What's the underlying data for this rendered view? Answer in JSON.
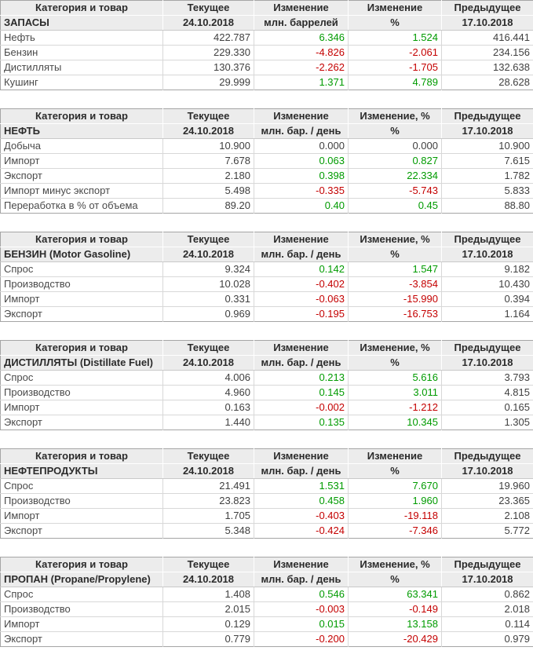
{
  "colors": {
    "positive": "#009b00",
    "negative": "#c40000",
    "neutral_text": "#3f3f3f",
    "header_bg": "#ececec",
    "header_text": "#2b2b2b",
    "table_border": "#a5a5a5"
  },
  "column_roles": [
    "category",
    "current",
    "change",
    "change-pct",
    "previous"
  ],
  "tables": [
    {
      "id": "stocks",
      "header": [
        "Категория и товар",
        "Текущее",
        "Изменение",
        "Изменение",
        "Предыдущее"
      ],
      "subheader": [
        "ЗАПАСЫ",
        "24.10.2018",
        "млн. баррелей",
        "%",
        "17.10.2018"
      ],
      "rows": [
        {
          "label": "Нефть",
          "values": [
            "422.787",
            "6.346",
            "1.524",
            "416.441"
          ]
        },
        {
          "label": "Бензин",
          "values": [
            "229.330",
            "-4.826",
            "-2.061",
            "234.156"
          ]
        },
        {
          "label": "Дистилляты",
          "values": [
            "130.376",
            "-2.262",
            "-1.705",
            "132.638"
          ]
        },
        {
          "label": "Кушинг",
          "values": [
            "29.999",
            "1.371",
            "4.789",
            "28.628"
          ]
        }
      ]
    },
    {
      "id": "crude-oil",
      "header": [
        "Категория и товар",
        "Текущее",
        "Изменение",
        "Изменение, %",
        "Предыдущее"
      ],
      "subheader": [
        "НЕФТЬ",
        "24.10.2018",
        "млн. бар. / день",
        "%",
        "17.10.2018"
      ],
      "rows": [
        {
          "label": "Добыча",
          "values": [
            "10.900",
            "0.000",
            "0.000",
            "10.900"
          ]
        },
        {
          "label": "Импорт",
          "values": [
            "7.678",
            "0.063",
            "0.827",
            "7.615"
          ]
        },
        {
          "label": "Экспорт",
          "values": [
            "2.180",
            "0.398",
            "22.334",
            "1.782"
          ]
        },
        {
          "label": "Импорт минус экспорт",
          "values": [
            "5.498",
            "-0.335",
            "-5.743",
            "5.833"
          ]
        },
        {
          "label": "Переработка в % от объема",
          "values": [
            "89.20",
            "0.40",
            "0.45",
            "88.80"
          ]
        }
      ]
    },
    {
      "id": "gasoline",
      "header": [
        "Категория и товар",
        "Текущее",
        "Изменение",
        "Изменение, %",
        "Предыдущее"
      ],
      "subheader": [
        "БЕНЗИН (Motor Gasoline)",
        "24.10.2018",
        "млн. бар. / день",
        "%",
        "17.10.2018"
      ],
      "rows": [
        {
          "label": "Спрос",
          "values": [
            "9.324",
            "0.142",
            "1.547",
            "9.182"
          ]
        },
        {
          "label": "Производство",
          "values": [
            "10.028",
            "-0.402",
            "-3.854",
            "10.430"
          ]
        },
        {
          "label": "Импорт",
          "values": [
            "0.331",
            "-0.063",
            "-15.990",
            "0.394"
          ]
        },
        {
          "label": "Экспорт",
          "values": [
            "0.969",
            "-0.195",
            "-16.753",
            "1.164"
          ]
        }
      ]
    },
    {
      "id": "distillates",
      "header": [
        "Категория и товар",
        "Текущее",
        "Изменение",
        "Изменение, %",
        "Предыдущее"
      ],
      "subheader": [
        "ДИСТИЛЛЯТЫ (Distillate Fuel)",
        "24.10.2018",
        "млн. бар. / день",
        "%",
        "17.10.2018"
      ],
      "rows": [
        {
          "label": "Спрос",
          "values": [
            "4.006",
            "0.213",
            "5.616",
            "3.793"
          ]
        },
        {
          "label": "Производство",
          "values": [
            "4.960",
            "0.145",
            "3.011",
            "4.815"
          ]
        },
        {
          "label": "Импорт",
          "values": [
            "0.163",
            "-0.002",
            "-1.212",
            "0.165"
          ]
        },
        {
          "label": "Экспорт",
          "values": [
            "1.440",
            "0.135",
            "10.345",
            "1.305"
          ]
        }
      ]
    },
    {
      "id": "petroleum-products",
      "header": [
        "Категория и товар",
        "Текущее",
        "Изменение",
        "Изменение",
        "Предыдущее"
      ],
      "subheader": [
        "НЕФТЕПРОДУКТЫ",
        "24.10.2018",
        "млн. бар. / день",
        "%",
        "17.10.2018"
      ],
      "rows": [
        {
          "label": "Спрос",
          "values": [
            "21.491",
            "1.531",
            "7.670",
            "19.960"
          ]
        },
        {
          "label": "Производство",
          "values": [
            "23.823",
            "0.458",
            "1.960",
            "23.365"
          ]
        },
        {
          "label": "Импорт",
          "values": [
            "1.705",
            "-0.403",
            "-19.118",
            "2.108"
          ]
        },
        {
          "label": "Экспорт",
          "values": [
            "5.348",
            "-0.424",
            "-7.346",
            "5.772"
          ]
        }
      ]
    },
    {
      "id": "propane",
      "header": [
        "Категория и товар",
        "Текущее",
        "Изменение",
        "Изменение, %",
        "Предыдущее"
      ],
      "subheader": [
        "ПРОПАН (Propane/Propylene)",
        "24.10.2018",
        "млн. бар. / день",
        "%",
        "17.10.2018"
      ],
      "rows": [
        {
          "label": "Спрос",
          "values": [
            "1.408",
            "0.546",
            "63.341",
            "0.862"
          ]
        },
        {
          "label": "Производство",
          "values": [
            "2.015",
            "-0.003",
            "-0.149",
            "2.018"
          ]
        },
        {
          "label": "Импорт",
          "values": [
            "0.129",
            "0.015",
            "13.158",
            "0.114"
          ]
        },
        {
          "label": "Экспорт",
          "values": [
            "0.779",
            "-0.200",
            "-20.429",
            "0.979"
          ]
        }
      ]
    }
  ]
}
